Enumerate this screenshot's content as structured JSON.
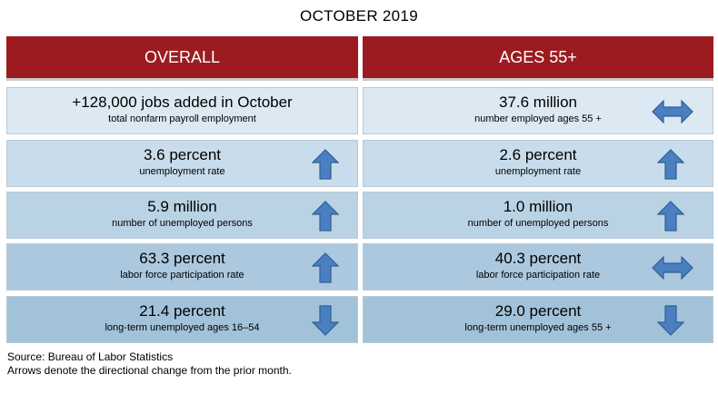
{
  "title": "OCTOBER 2019",
  "columns": {
    "left": "OVERALL",
    "right": "AGES 55+"
  },
  "rows": [
    {
      "left": {
        "main": "+128,000 jobs added in October",
        "sub": "total nonfarm payroll employment",
        "arrow": "none"
      },
      "right": {
        "main": "37.6 million",
        "sub": "number employed ages 55 +",
        "arrow": "unchanged"
      }
    },
    {
      "left": {
        "main": "3.6 percent",
        "sub": "unemployment rate",
        "arrow": "up"
      },
      "right": {
        "main": "2.6 percent",
        "sub": "unemployment rate",
        "arrow": "up"
      }
    },
    {
      "left": {
        "main": "5.9 million",
        "sub": "number of unemployed persons",
        "arrow": "up"
      },
      "right": {
        "main": "1.0 million",
        "sub": "number of unemployed persons",
        "arrow": "up"
      }
    },
    {
      "left": {
        "main": "63.3 percent",
        "sub": "labor force participation rate",
        "arrow": "up"
      },
      "right": {
        "main": "40.3 percent",
        "sub": "labor force participation rate",
        "arrow": "unchanged"
      }
    },
    {
      "left": {
        "main": "21.4 percent",
        "sub": "long-term unemployed ages 16–54",
        "arrow": "down"
      },
      "right": {
        "main": "29.0 percent",
        "sub": "long-term unemployed ages 55 +",
        "arrow": "down"
      }
    }
  ],
  "footer": {
    "source": "Source: Bureau of Labor Statistics",
    "note": "Arrows denote the directional change from the prior month."
  },
  "colors": {
    "header": "#9b1b20",
    "arrow_fill": "#4a7fc1",
    "arrow_stroke": "#2f5f96"
  }
}
